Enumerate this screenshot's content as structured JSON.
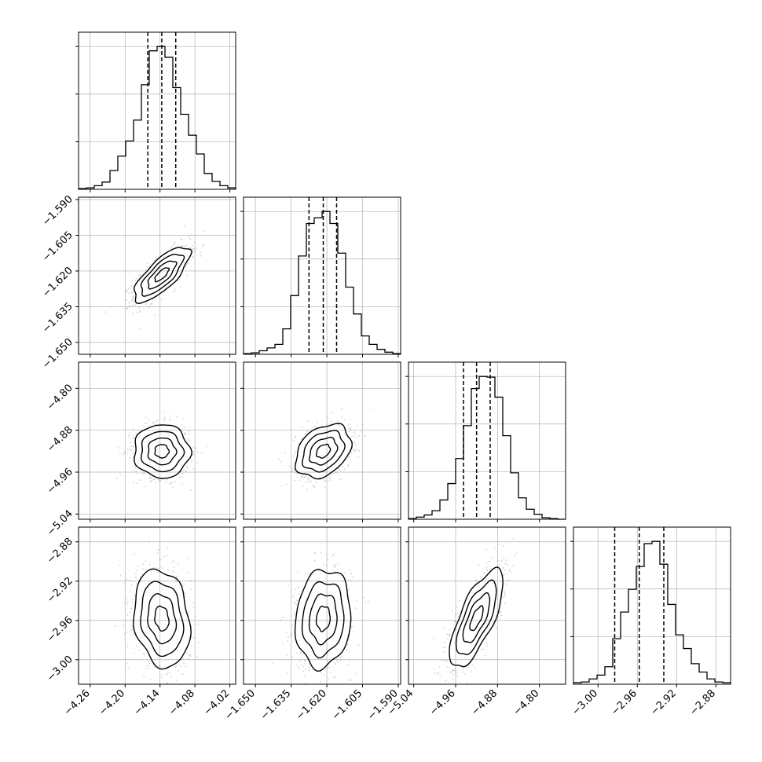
{
  "chart_data": {
    "type": "corner",
    "colors": {
      "hist_line": "#000000",
      "quantile_line": "#000000",
      "grid": "#b0b0b0",
      "points": "#808080",
      "density_dark": "#000000"
    },
    "grid": true,
    "quantiles": [
      0.16,
      0.5,
      0.84
    ],
    "parameters": [
      {
        "id": "p0",
        "range": [
          -4.28,
          -4.01
        ],
        "ticks": [
          -4.26,
          -4.2,
          -4.14,
          -4.08,
          -4.02
        ],
        "tick_labels": [
          "−4.26",
          "−4.20",
          "−4.14",
          "−4.08",
          "−4.02"
        ],
        "quantile_values": [
          -4.161,
          -4.137,
          -4.113
        ],
        "hist_bin_edges": [
          -4.28,
          -4.2665,
          -4.253,
          -4.2395,
          -4.226,
          -4.2125,
          -4.199,
          -4.1855,
          -4.172,
          -4.1585,
          -4.145,
          -4.1315,
          -4.118,
          -4.1045,
          -4.091,
          -4.0775,
          -4.064,
          -4.0505,
          -4.037,
          -4.0235,
          -4.01
        ],
        "hist_counts": [
          1,
          2,
          5,
          10,
          26,
          46,
          67,
          96,
          145,
          192,
          198,
          183,
          141,
          104,
          75,
          49,
          22,
          11,
          5,
          2
        ]
      },
      {
        "id": "p1",
        "range": [
          -1.655,
          -1.589
        ],
        "ticks": [
          -1.65,
          -1.635,
          -1.62,
          -1.605,
          -1.59
        ],
        "tick_labels": [
          "−1.650",
          "−1.635",
          "−1.620",
          "−1.605",
          "−1.590"
        ],
        "quantile_values": [
          -1.6275,
          -1.6215,
          -1.6159
        ],
        "hist_bin_edges": [
          -1.655,
          -1.6517,
          -1.6484,
          -1.6451,
          -1.6418,
          -1.6385,
          -1.6352,
          -1.6319,
          -1.6286,
          -1.6253,
          -1.622,
          -1.6187,
          -1.6154,
          -1.6121,
          -1.6088,
          -1.6055,
          -1.6022,
          -1.5989,
          -1.5956,
          -1.5923,
          -1.589
        ],
        "hist_counts": [
          1,
          2,
          5,
          9,
          14,
          36,
          83,
          139,
          185,
          193,
          202,
          185,
          143,
          95,
          57,
          26,
          14,
          7,
          3,
          1
        ]
      },
      {
        "id": "p2",
        "range": [
          -5.05,
          -4.75
        ],
        "ticks": [
          -5.04,
          -4.96,
          -4.88,
          -4.8
        ],
        "tick_labels": [
          "−5.04",
          "−4.96",
          "−4.88",
          "−4.80"
        ],
        "quantile_values": [
          -4.945,
          -4.92,
          -4.894
        ],
        "hist_bin_edges": [
          -5.05,
          -5.035,
          -5.02,
          -5.005,
          -4.99,
          -4.975,
          -4.96,
          -4.945,
          -4.93,
          -4.915,
          -4.9,
          -4.885,
          -4.87,
          -4.855,
          -4.84,
          -4.825,
          -4.81,
          -4.795,
          -4.78,
          -4.765,
          -4.75
        ],
        "hist_counts": [
          1,
          3,
          6,
          12,
          27,
          50,
          85,
          131,
          183,
          200,
          199,
          171,
          117,
          65,
          30,
          14,
          7,
          2,
          1,
          0
        ]
      },
      {
        "id": "p3",
        "range": [
          -3.025,
          -2.865
        ],
        "ticks": [
          -3.0,
          -2.96,
          -2.92,
          -2.88
        ],
        "tick_labels": [
          "−3.00",
          "−2.96",
          "−2.92",
          "−2.88"
        ],
        "quantile_values": [
          -2.983,
          -2.958,
          -2.933
        ],
        "hist_bin_edges": [
          -3.025,
          -3.017,
          -3.009,
          -3.001,
          -2.993,
          -2.985,
          -2.977,
          -2.969,
          -2.961,
          -2.953,
          -2.945,
          -2.937,
          -2.929,
          -2.921,
          -2.913,
          -2.905,
          -2.897,
          -2.889,
          -2.881,
          -2.873,
          -2.865
        ],
        "hist_counts": [
          2,
          3,
          7,
          12,
          23,
          60,
          95,
          125,
          155,
          185,
          188,
          158,
          105,
          65,
          47,
          27,
          16,
          7,
          3,
          2
        ]
      }
    ],
    "correlations": {
      "p1_p0": 0.75,
      "p2_p0": -0.02,
      "p2_p1": 0.32,
      "p3_p0": -0.18,
      "p3_p1": 0.1,
      "p3_p2": 0.72
    }
  }
}
